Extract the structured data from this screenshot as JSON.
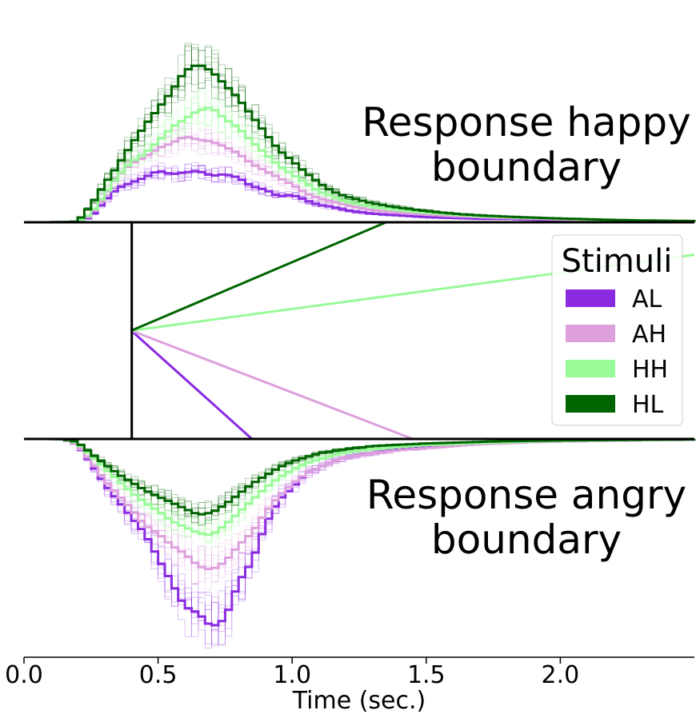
{
  "chart_data": {
    "type": "histogram",
    "title": "",
    "xlabel": "Time (sec.)",
    "xlim": [
      0.0,
      2.5
    ],
    "xticks": [
      0.0,
      0.5,
      1.0,
      1.5,
      2.0
    ],
    "xtick_labels": [
      "0.0",
      "0.5",
      "1.0",
      "1.5",
      "2.0"
    ],
    "bin_width": 0.025,
    "upper_panel_label": "Response happy boundary",
    "lower_panel_label": "Response angry boundary",
    "upper_label_lines": [
      "Response happy",
      "boundary"
    ],
    "lower_label_lines": [
      "Response angry",
      "boundary"
    ],
    "legend": {
      "title": "Stimuli",
      "placement": "center-right"
    },
    "non_decision_time": 0.4,
    "starting_point": 0.5,
    "series": [
      {
        "name": "AL",
        "color": "#8a2be2",
        "drift_end": [
          0.85,
          0.0
        ],
        "upper": [
          [
            0.1,
            0.0
          ],
          [
            0.15,
            0.001
          ],
          [
            0.2,
            0.003
          ],
          [
            0.25,
            0.03
          ],
          [
            0.3,
            0.12
          ],
          [
            0.35,
            0.2
          ],
          [
            0.4,
            0.23
          ],
          [
            0.45,
            0.26
          ],
          [
            0.5,
            0.3
          ],
          [
            0.55,
            0.28
          ],
          [
            0.6,
            0.29
          ],
          [
            0.65,
            0.3
          ],
          [
            0.7,
            0.27
          ],
          [
            0.75,
            0.28
          ],
          [
            0.8,
            0.26
          ],
          [
            0.85,
            0.21
          ],
          [
            0.9,
            0.19
          ],
          [
            0.95,
            0.15
          ],
          [
            1.0,
            0.16
          ],
          [
            1.05,
            0.13
          ],
          [
            1.1,
            0.1
          ],
          [
            1.15,
            0.09
          ],
          [
            1.2,
            0.07
          ],
          [
            1.3,
            0.05
          ],
          [
            1.4,
            0.04
          ],
          [
            1.5,
            0.03
          ],
          [
            1.6,
            0.025
          ],
          [
            1.7,
            0.02
          ],
          [
            1.8,
            0.02
          ],
          [
            1.9,
            0.015
          ],
          [
            2.0,
            0.012
          ],
          [
            2.1,
            0.01
          ],
          [
            2.2,
            0.008
          ],
          [
            2.3,
            0.006
          ],
          [
            2.4,
            0.005
          ],
          [
            2.5,
            0.004
          ]
        ],
        "lower": [
          [
            0.1,
            0.0
          ],
          [
            0.15,
            0.002
          ],
          [
            0.2,
            0.03
          ],
          [
            0.25,
            0.12
          ],
          [
            0.3,
            0.22
          ],
          [
            0.35,
            0.3
          ],
          [
            0.4,
            0.38
          ],
          [
            0.45,
            0.46
          ],
          [
            0.5,
            0.58
          ],
          [
            0.55,
            0.7
          ],
          [
            0.6,
            0.82
          ],
          [
            0.65,
            0.85
          ],
          [
            0.7,
            0.92
          ],
          [
            0.75,
            0.88
          ],
          [
            0.8,
            0.7
          ],
          [
            0.85,
            0.6
          ],
          [
            0.9,
            0.42
          ],
          [
            0.95,
            0.3
          ],
          [
            1.0,
            0.24
          ],
          [
            1.05,
            0.17
          ],
          [
            1.1,
            0.14
          ],
          [
            1.15,
            0.11
          ],
          [
            1.2,
            0.09
          ],
          [
            1.3,
            0.07
          ],
          [
            1.4,
            0.05
          ],
          [
            1.5,
            0.04
          ],
          [
            1.6,
            0.03
          ],
          [
            1.7,
            0.025
          ],
          [
            1.8,
            0.02
          ],
          [
            1.9,
            0.015
          ],
          [
            2.0,
            0.012
          ],
          [
            2.1,
            0.01
          ],
          [
            2.2,
            0.008
          ],
          [
            2.3,
            0.006
          ],
          [
            2.4,
            0.005
          ],
          [
            2.5,
            0.004
          ]
        ]
      },
      {
        "name": "AH",
        "color": "#dda0dd",
        "drift_end": [
          1.45,
          0.0
        ],
        "upper": [
          [
            0.1,
            0.0
          ],
          [
            0.15,
            0.001
          ],
          [
            0.2,
            0.003
          ],
          [
            0.25,
            0.04
          ],
          [
            0.3,
            0.15
          ],
          [
            0.35,
            0.27
          ],
          [
            0.4,
            0.34
          ],
          [
            0.45,
            0.38
          ],
          [
            0.5,
            0.43
          ],
          [
            0.55,
            0.46
          ],
          [
            0.6,
            0.5
          ],
          [
            0.65,
            0.48
          ],
          [
            0.7,
            0.47
          ],
          [
            0.75,
            0.44
          ],
          [
            0.8,
            0.4
          ],
          [
            0.85,
            0.34
          ],
          [
            0.9,
            0.3
          ],
          [
            0.95,
            0.26
          ],
          [
            1.0,
            0.22
          ],
          [
            1.05,
            0.17
          ],
          [
            1.1,
            0.14
          ],
          [
            1.15,
            0.12
          ],
          [
            1.2,
            0.1
          ],
          [
            1.3,
            0.07
          ],
          [
            1.4,
            0.055
          ],
          [
            1.5,
            0.045
          ],
          [
            1.6,
            0.035
          ],
          [
            1.7,
            0.03
          ],
          [
            1.8,
            0.025
          ],
          [
            1.9,
            0.02
          ],
          [
            2.0,
            0.016
          ],
          [
            2.1,
            0.013
          ],
          [
            2.2,
            0.01
          ],
          [
            2.3,
            0.008
          ],
          [
            2.4,
            0.006
          ],
          [
            2.5,
            0.005
          ]
        ],
        "lower": [
          [
            0.1,
            0.0
          ],
          [
            0.15,
            0.002
          ],
          [
            0.2,
            0.03
          ],
          [
            0.25,
            0.11
          ],
          [
            0.3,
            0.2
          ],
          [
            0.35,
            0.27
          ],
          [
            0.4,
            0.34
          ],
          [
            0.45,
            0.42
          ],
          [
            0.5,
            0.46
          ],
          [
            0.55,
            0.52
          ],
          [
            0.6,
            0.56
          ],
          [
            0.65,
            0.62
          ],
          [
            0.7,
            0.64
          ],
          [
            0.75,
            0.6
          ],
          [
            0.8,
            0.52
          ],
          [
            0.85,
            0.46
          ],
          [
            0.9,
            0.36
          ],
          [
            0.95,
            0.28
          ],
          [
            1.0,
            0.22
          ],
          [
            1.05,
            0.17
          ],
          [
            1.1,
            0.14
          ],
          [
            1.15,
            0.11
          ],
          [
            1.2,
            0.09
          ],
          [
            1.3,
            0.07
          ],
          [
            1.4,
            0.055
          ],
          [
            1.5,
            0.045
          ],
          [
            1.6,
            0.035
          ],
          [
            1.7,
            0.025
          ],
          [
            1.8,
            0.02
          ],
          [
            1.9,
            0.015
          ],
          [
            2.0,
            0.012
          ],
          [
            2.1,
            0.01
          ],
          [
            2.2,
            0.008
          ],
          [
            2.3,
            0.006
          ],
          [
            2.4,
            0.005
          ],
          [
            2.5,
            0.004
          ]
        ]
      },
      {
        "name": "HH",
        "color": "#98fb98",
        "drift_end": [
          2.5,
          0.85
        ],
        "upper": [
          [
            0.1,
            0.0
          ],
          [
            0.15,
            0.001
          ],
          [
            0.2,
            0.003
          ],
          [
            0.25,
            0.05
          ],
          [
            0.3,
            0.16
          ],
          [
            0.35,
            0.27
          ],
          [
            0.4,
            0.35
          ],
          [
            0.45,
            0.4
          ],
          [
            0.5,
            0.47
          ],
          [
            0.55,
            0.55
          ],
          [
            0.6,
            0.6
          ],
          [
            0.65,
            0.65
          ],
          [
            0.7,
            0.67
          ],
          [
            0.75,
            0.6
          ],
          [
            0.8,
            0.55
          ],
          [
            0.85,
            0.47
          ],
          [
            0.9,
            0.4
          ],
          [
            0.95,
            0.33
          ],
          [
            1.0,
            0.28
          ],
          [
            1.05,
            0.23
          ],
          [
            1.1,
            0.18
          ],
          [
            1.15,
            0.15
          ],
          [
            1.2,
            0.12
          ],
          [
            1.3,
            0.09
          ],
          [
            1.4,
            0.07
          ],
          [
            1.5,
            0.055
          ],
          [
            1.6,
            0.045
          ],
          [
            1.7,
            0.035
          ],
          [
            1.8,
            0.03
          ],
          [
            1.9,
            0.025
          ],
          [
            2.0,
            0.02
          ],
          [
            2.1,
            0.016
          ],
          [
            2.2,
            0.013
          ],
          [
            2.3,
            0.01
          ],
          [
            2.4,
            0.008
          ],
          [
            2.5,
            0.006
          ]
        ],
        "lower": [
          [
            0.1,
            0.0
          ],
          [
            0.15,
            0.001
          ],
          [
            0.2,
            0.02
          ],
          [
            0.25,
            0.08
          ],
          [
            0.3,
            0.14
          ],
          [
            0.35,
            0.2
          ],
          [
            0.4,
            0.26
          ],
          [
            0.45,
            0.31
          ],
          [
            0.5,
            0.35
          ],
          [
            0.55,
            0.4
          ],
          [
            0.6,
            0.43
          ],
          [
            0.65,
            0.46
          ],
          [
            0.7,
            0.47
          ],
          [
            0.75,
            0.42
          ],
          [
            0.8,
            0.36
          ],
          [
            0.85,
            0.3
          ],
          [
            0.9,
            0.24
          ],
          [
            0.95,
            0.19
          ],
          [
            1.0,
            0.15
          ],
          [
            1.05,
            0.12
          ],
          [
            1.1,
            0.1
          ],
          [
            1.15,
            0.08
          ],
          [
            1.2,
            0.065
          ],
          [
            1.3,
            0.05
          ],
          [
            1.4,
            0.04
          ],
          [
            1.5,
            0.03
          ],
          [
            1.6,
            0.025
          ],
          [
            1.7,
            0.02
          ],
          [
            1.8,
            0.016
          ],
          [
            1.9,
            0.012
          ],
          [
            2.0,
            0.01
          ],
          [
            2.1,
            0.008
          ],
          [
            2.2,
            0.006
          ],
          [
            2.3,
            0.005
          ],
          [
            2.4,
            0.004
          ],
          [
            2.5,
            0.003
          ]
        ]
      },
      {
        "name": "HL",
        "color": "#006400",
        "drift_end": [
          1.35,
          1.0
        ],
        "upper": [
          [
            0.1,
            0.0
          ],
          [
            0.15,
            0.001
          ],
          [
            0.2,
            0.004
          ],
          [
            0.25,
            0.1
          ],
          [
            0.3,
            0.22
          ],
          [
            0.35,
            0.33
          ],
          [
            0.4,
            0.45
          ],
          [
            0.45,
            0.56
          ],
          [
            0.5,
            0.66
          ],
          [
            0.55,
            0.76
          ],
          [
            0.6,
            0.88
          ],
          [
            0.65,
            0.92
          ],
          [
            0.7,
            0.88
          ],
          [
            0.75,
            0.8
          ],
          [
            0.8,
            0.72
          ],
          [
            0.85,
            0.62
          ],
          [
            0.9,
            0.52
          ],
          [
            0.95,
            0.42
          ],
          [
            1.0,
            0.36
          ],
          [
            1.05,
            0.29
          ],
          [
            1.1,
            0.23
          ],
          [
            1.15,
            0.18
          ],
          [
            1.2,
            0.15
          ],
          [
            1.3,
            0.11
          ],
          [
            1.4,
            0.085
          ],
          [
            1.5,
            0.065
          ],
          [
            1.6,
            0.05
          ],
          [
            1.7,
            0.04
          ],
          [
            1.8,
            0.033
          ],
          [
            1.9,
            0.027
          ],
          [
            2.0,
            0.022
          ],
          [
            2.1,
            0.018
          ],
          [
            2.2,
            0.014
          ],
          [
            2.3,
            0.011
          ],
          [
            2.4,
            0.009
          ],
          [
            2.5,
            0.007
          ]
        ],
        "lower": [
          [
            0.1,
            0.0
          ],
          [
            0.15,
            0.001
          ],
          [
            0.2,
            0.015
          ],
          [
            0.25,
            0.07
          ],
          [
            0.3,
            0.12
          ],
          [
            0.35,
            0.17
          ],
          [
            0.4,
            0.21
          ],
          [
            0.45,
            0.25
          ],
          [
            0.5,
            0.28
          ],
          [
            0.55,
            0.31
          ],
          [
            0.6,
            0.34
          ],
          [
            0.65,
            0.37
          ],
          [
            0.7,
            0.36
          ],
          [
            0.75,
            0.32
          ],
          [
            0.8,
            0.27
          ],
          [
            0.85,
            0.22
          ],
          [
            0.9,
            0.18
          ],
          [
            0.95,
            0.14
          ],
          [
            1.0,
            0.11
          ],
          [
            1.05,
            0.09
          ],
          [
            1.1,
            0.07
          ],
          [
            1.15,
            0.06
          ],
          [
            1.2,
            0.05
          ],
          [
            1.3,
            0.035
          ],
          [
            1.4,
            0.028
          ],
          [
            1.5,
            0.022
          ],
          [
            1.6,
            0.018
          ],
          [
            1.7,
            0.014
          ],
          [
            1.8,
            0.011
          ],
          [
            1.9,
            0.009
          ],
          [
            2.0,
            0.007
          ],
          [
            2.1,
            0.006
          ],
          [
            2.2,
            0.005
          ],
          [
            2.3,
            0.004
          ],
          [
            2.4,
            0.003
          ],
          [
            2.5,
            0.002
          ]
        ]
      }
    ]
  }
}
